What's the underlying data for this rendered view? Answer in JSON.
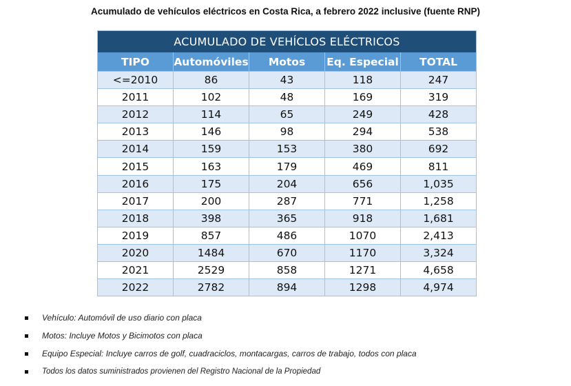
{
  "page": {
    "title": "Acumulado de vehículos eléctricos en Costa Rica, a febrero 2022 inclusive (fuente RNP)"
  },
  "table": {
    "banner": "ACUMULADO DE VEHÍCLOS ELÉCTRICOS",
    "columns": [
      "TIPO",
      "Automóviles",
      "Motos",
      "Eq. Especial",
      "TOTAL"
    ],
    "rows": [
      [
        "<=2010",
        "86",
        "43",
        "118",
        "247"
      ],
      [
        "2011",
        "102",
        "48",
        "169",
        "319"
      ],
      [
        "2012",
        "114",
        "65",
        "249",
        "428"
      ],
      [
        "2013",
        "146",
        "98",
        "294",
        "538"
      ],
      [
        "2014",
        "159",
        "153",
        "380",
        "692"
      ],
      [
        "2015",
        "163",
        "179",
        "469",
        "811"
      ],
      [
        "2016",
        "175",
        "204",
        "656",
        "1,035"
      ],
      [
        "2017",
        "200",
        "287",
        "771",
        "1,258"
      ],
      [
        "2018",
        "398",
        "365",
        "918",
        "1,681"
      ],
      [
        "2019",
        "857",
        "486",
        "1070",
        "2,413"
      ],
      [
        "2020",
        "1484",
        "670",
        "1170",
        "3,324"
      ],
      [
        "2021",
        "2529",
        "858",
        "1271",
        "4,658"
      ],
      [
        "2022",
        "2782",
        "894",
        "1298",
        "4,974"
      ]
    ],
    "colors": {
      "banner_bg": "#1f4e79",
      "header_bg": "#5b9bd5",
      "stripe_bg": "#dde9f6",
      "border": "#9dc3e6"
    }
  },
  "notes": [
    "Vehículo: Automóvil de uso diario con placa",
    "Motos: Incluye Motos y Bicimotos con placa",
    "Equipo Especial: Incluye carros de golf, cuadraciclos, montacargas, carros de trabajo, todos con placa",
    "Todos los datos suministrados provienen del Registro Nacional de la Propiedad"
  ]
}
